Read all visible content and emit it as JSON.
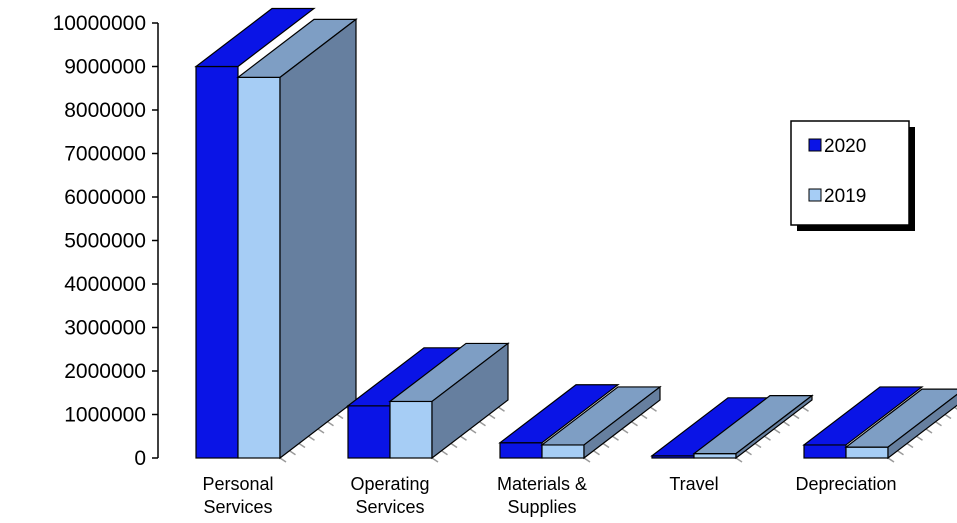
{
  "chart_data": {
    "type": "bar",
    "categories": [
      [
        "Personal",
        "Services"
      ],
      [
        "Operating",
        "Services"
      ],
      [
        "Materials &",
        "Supplies"
      ],
      [
        "Travel"
      ],
      [
        "Depreciation"
      ]
    ],
    "series": [
      {
        "name": "2020",
        "values": [
          9000000,
          1200000,
          350000,
          50000,
          300000
        ],
        "color": "#0a14e6"
      },
      {
        "name": "2019",
        "values": [
          8750000,
          1300000,
          300000,
          100000,
          250000
        ],
        "color": "#a6cdf5"
      }
    ],
    "ylim": [
      0,
      10000000
    ],
    "yticks": [
      "0",
      "1000000",
      "2000000",
      "3000000",
      "4000000",
      "5000000",
      "6000000",
      "7000000",
      "8000000",
      "9000000",
      "10000000"
    ],
    "depth_top_color_2019": "#7e9ec4",
    "side_color": "#667f9f",
    "legend_position": "right",
    "grid": false
  }
}
